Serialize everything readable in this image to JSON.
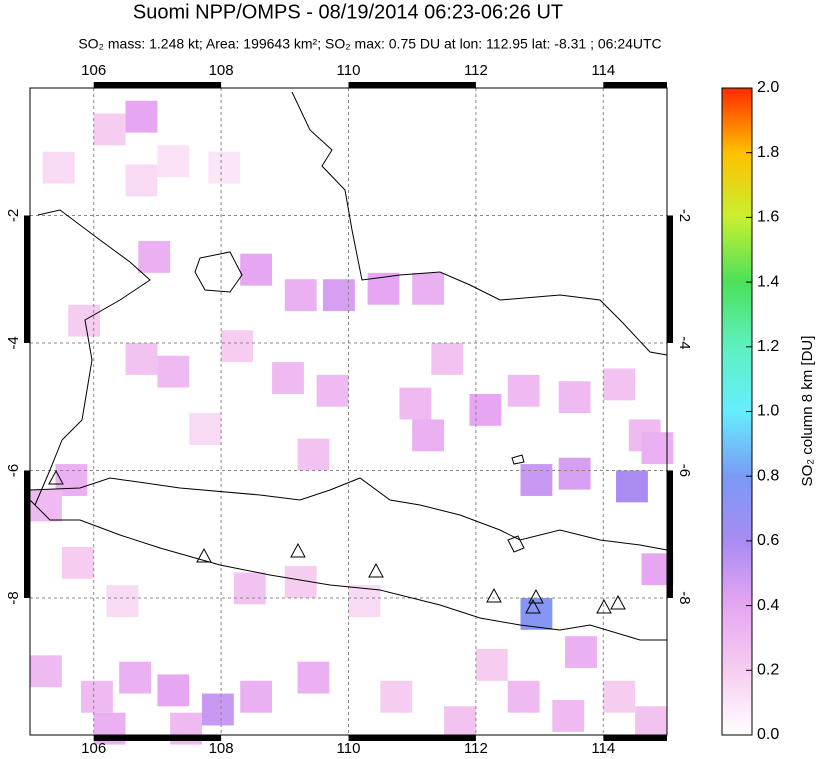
{
  "title": "Suomi NPP/OMPS - 08/19/2014 06:23-06:26 UT",
  "subtitle": "SO₂ mass: 1.248 kt; Area: 199643 km²; SO₂ max: 0.75 DU at lon: 112.95 lat: -8.31 ; 06:24UTC",
  "map": {
    "xlim": [
      105,
      115
    ],
    "ylim": [
      -10.15,
      0
    ],
    "xticks": [
      106,
      108,
      110,
      112,
      114
    ],
    "yticks": [
      -2,
      -4,
      -6,
      -8
    ],
    "grid": true,
    "cell_size": 0.5,
    "cells": [
      [
        106.5,
        -0.2,
        0.4
      ],
      [
        106.0,
        -0.4,
        0.2
      ],
      [
        105.2,
        -1.0,
        0.15
      ],
      [
        106.5,
        -1.2,
        0.15
      ],
      [
        107.0,
        -0.9,
        0.12
      ],
      [
        107.8,
        -1.0,
        0.1
      ],
      [
        106.7,
        -2.4,
        0.35
      ],
      [
        108.3,
        -2.6,
        0.4
      ],
      [
        109.0,
        -3.0,
        0.35
      ],
      [
        109.6,
        -3.0,
        0.45
      ],
      [
        110.3,
        -2.9,
        0.4
      ],
      [
        111.0,
        -2.9,
        0.35
      ],
      [
        105.6,
        -3.4,
        0.2
      ],
      [
        106.5,
        -4.0,
        0.25
      ],
      [
        107.0,
        -4.2,
        0.3
      ],
      [
        108.0,
        -3.8,
        0.2
      ],
      [
        108.8,
        -4.3,
        0.3
      ],
      [
        109.5,
        -4.5,
        0.3
      ],
      [
        110.8,
        -4.7,
        0.3
      ],
      [
        111.3,
        -4.0,
        0.25
      ],
      [
        111.9,
        -4.8,
        0.4
      ],
      [
        112.5,
        -4.5,
        0.3
      ],
      [
        113.3,
        -4.6,
        0.3
      ],
      [
        114.0,
        -4.4,
        0.25
      ],
      [
        114.4,
        -5.2,
        0.3
      ],
      [
        112.7,
        -5.9,
        0.5
      ],
      [
        113.3,
        -5.8,
        0.45
      ],
      [
        114.2,
        -6.0,
        0.6
      ],
      [
        114.6,
        -5.4,
        0.35
      ],
      [
        111.0,
        -5.2,
        0.35
      ],
      [
        109.2,
        -5.5,
        0.25
      ],
      [
        107.5,
        -5.1,
        0.15
      ],
      [
        105.4,
        -5.9,
        0.35
      ],
      [
        105.0,
        -6.3,
        0.3
      ],
      [
        112.7,
        -8.0,
        0.75
      ],
      [
        113.4,
        -8.6,
        0.35
      ],
      [
        114.6,
        -7.3,
        0.4
      ],
      [
        112.0,
        -8.8,
        0.2
      ],
      [
        105.0,
        -8.9,
        0.3
      ],
      [
        105.8,
        -9.3,
        0.3
      ],
      [
        106.4,
        -9.0,
        0.35
      ],
      [
        107.0,
        -9.2,
        0.4
      ],
      [
        107.7,
        -9.5,
        0.5
      ],
      [
        108.3,
        -9.3,
        0.35
      ],
      [
        109.2,
        -9.0,
        0.35
      ],
      [
        106.0,
        -9.8,
        0.35
      ],
      [
        107.2,
        -9.8,
        0.3
      ],
      [
        110.5,
        -9.3,
        0.2
      ],
      [
        111.5,
        -9.7,
        0.25
      ],
      [
        112.5,
        -9.3,
        0.3
      ],
      [
        113.2,
        -9.6,
        0.3
      ],
      [
        114.0,
        -9.3,
        0.2
      ],
      [
        114.5,
        -9.7,
        0.25
      ],
      [
        108.2,
        -7.6,
        0.25
      ],
      [
        109.0,
        -7.5,
        0.2
      ],
      [
        110.0,
        -7.8,
        0.15
      ],
      [
        105.5,
        -7.2,
        0.2
      ],
      [
        106.2,
        -7.8,
        0.15
      ]
    ]
  },
  "colorbar": {
    "label": "SO₂ column 8 km [DU]",
    "lim": [
      0,
      2
    ],
    "colors": [
      "#ffffff",
      "#f6cdf0",
      "#e6a6f2",
      "#a98bf2",
      "#7a9af5",
      "#66eeff",
      "#5ff0c0",
      "#4ce05a",
      "#c8f030",
      "#ffc000",
      "#ff2a00"
    ],
    "ticks": [
      {
        "value": 0,
        "label": "0.0"
      },
      {
        "value": 0.2,
        "label": "0.2"
      },
      {
        "value": 0.4,
        "label": "0.4"
      },
      {
        "value": 0.6,
        "label": "0.6"
      },
      {
        "value": 0.8,
        "label": "0.8"
      },
      {
        "value": 1,
        "label": "1.0"
      },
      {
        "value": 1.2,
        "label": "1.2"
      },
      {
        "value": 1.4,
        "label": "1.4"
      },
      {
        "value": 1.6,
        "label": "1.6"
      },
      {
        "value": 1.8,
        "label": "1.8"
      },
      {
        "value": 2,
        "label": "2.0"
      }
    ]
  }
}
